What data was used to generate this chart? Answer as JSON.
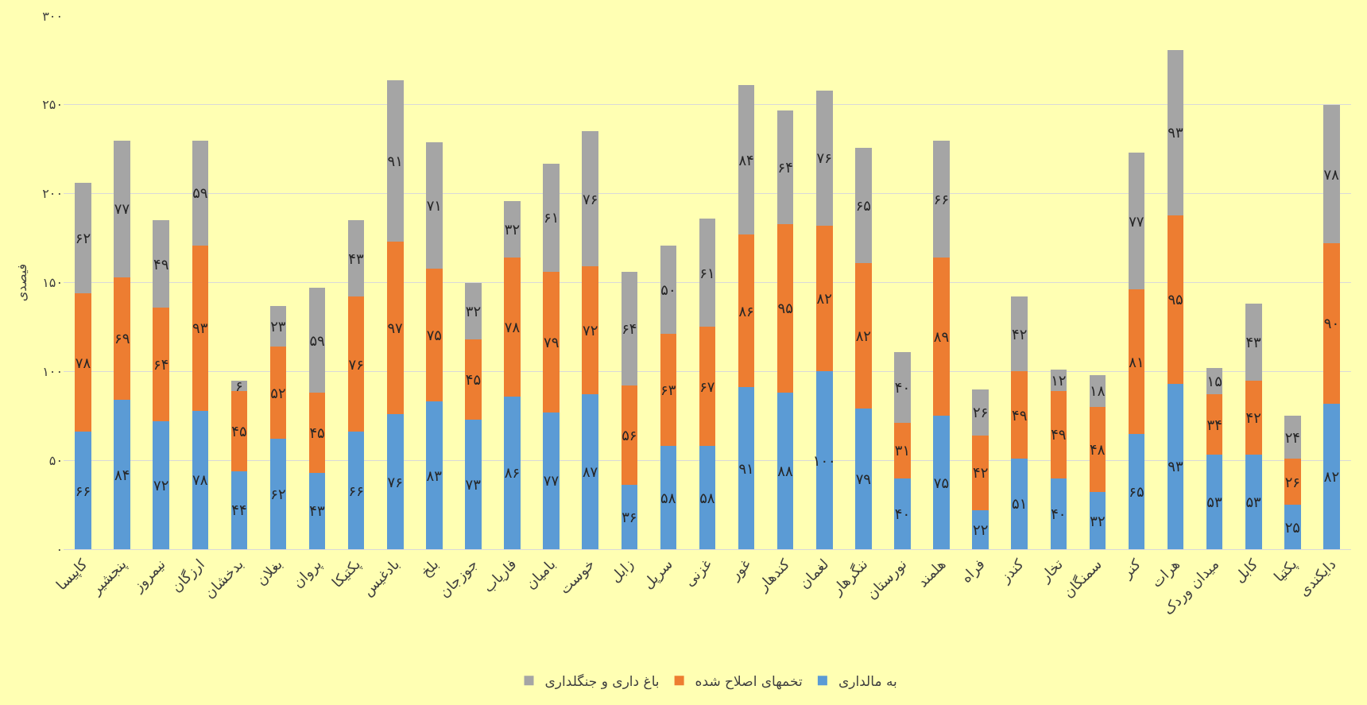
{
  "chart_data": {
    "type": "bar",
    "stacked": true,
    "ylabel": "فیصدی",
    "categories": [
      "کاپیسا",
      "پنجشیر",
      "نیمروز",
      "ارزگان",
      "بدخشان",
      "بغلان",
      "پروان",
      "پکتیکا",
      "بادغیس",
      "بلخ",
      "جوزجان",
      "فاریاب",
      "بامیان",
      "خوست",
      "زابل",
      "سرپل",
      "غزنی",
      "غور",
      "کندهار",
      "لغمان",
      "ننگرهار",
      "نورستان",
      "هلمند",
      "فراه",
      "کندز",
      "تخار",
      "سمنگان",
      "کنر",
      "هرات",
      "میدان وردک",
      "کابل",
      "پکتیا",
      "دایکندی"
    ],
    "series": [
      {
        "name": "به مالداری",
        "color": "#5b9bd5",
        "values": [
          66,
          84,
          72,
          78,
          44,
          62,
          43,
          66,
          76,
          83,
          73,
          86,
          77,
          87,
          36,
          58,
          58,
          91,
          88,
          100,
          79,
          40,
          75,
          22,
          51,
          40,
          32,
          65,
          93,
          53,
          53,
          25,
          82
        ],
        "value_labels": [
          "۶۶",
          "۸۴",
          "۷۲",
          "۷۸",
          "۴۴",
          "۶۲",
          "۴۳",
          "۶۶",
          "۷۶",
          "۸۳",
          "۷۳",
          "۸۶",
          "۷۷",
          "۸۷",
          "۳۶",
          "۵۸",
          "۵۸",
          "۹۱",
          "۸۸",
          "۱۰۰",
          "۷۹",
          "۴۰",
          "۷۵",
          "۲۲",
          "۵۱",
          "۴۰",
          "۳۲",
          "۶۵",
          "۹۳",
          "۵۳",
          "۵۳",
          "۲۵",
          "۸۲"
        ]
      },
      {
        "name": "تخمهای اصلاح شده",
        "color": "#ed7d31",
        "values": [
          78,
          69,
          64,
          93,
          45,
          52,
          45,
          76,
          97,
          75,
          45,
          78,
          79,
          72,
          56,
          63,
          67,
          86,
          95,
          82,
          82,
          31,
          89,
          42,
          49,
          49,
          48,
          81,
          95,
          34,
          42,
          26,
          90
        ],
        "value_labels": [
          "۷۸",
          "۶۹",
          "۶۴",
          "۹۳",
          "۴۵",
          "۵۲",
          "۴۵",
          "۷۶",
          "۹۷",
          "۷۵",
          "۴۵",
          "۷۸",
          "۷۹",
          "۷۲",
          "۵۶",
          "۶۳",
          "۶۷",
          "۸۶",
          "۹۵",
          "۸۲",
          "۸۲",
          "۳۱",
          "۸۹",
          "۴۲",
          "۴۹",
          "۴۹",
          "۴۸",
          "۸۱",
          "۹۵",
          "۳۴",
          "۴۲",
          "۲۶",
          "۹۰"
        ]
      },
      {
        "name": "باغ داری و جنگلداری",
        "color": "#a5a5a5",
        "values": [
          62,
          77,
          49,
          59,
          6,
          23,
          59,
          43,
          91,
          71,
          32,
          32,
          61,
          76,
          64,
          50,
          61,
          84,
          64,
          76,
          65,
          40,
          66,
          26,
          42,
          12,
          18,
          77,
          93,
          15,
          43,
          24,
          78
        ],
        "value_labels": [
          "۶۲",
          "۷۷",
          "۴۹",
          "۵۹",
          "۶",
          "۲۳",
          "۵۹",
          "۴۳",
          "۹۱",
          "۷۱",
          "۳۲",
          "۳۲",
          "۶۱",
          "۷۶",
          "۶۴",
          "۵۰",
          "۶۱",
          "۸۴",
          "۶۴",
          "۷۶",
          "۶۵",
          "۴۰",
          "۶۶",
          "۲۶",
          "۴۲",
          "۱۲",
          "۱۸",
          "۷۷",
          "۹۳",
          "۱۵",
          "۴۳",
          "۲۴",
          "۷۸"
        ]
      }
    ],
    "ylim": [
      0,
      300
    ],
    "yticks": [
      {
        "value": 0,
        "label": "۰"
      },
      {
        "value": 50,
        "label": "۵۰"
      },
      {
        "value": 100,
        "label": "۱۰۰"
      },
      {
        "value": 150,
        "label": "۱۵۰"
      },
      {
        "value": 200,
        "label": "۲۰۰"
      },
      {
        "value": 250,
        "label": "۲۵۰"
      },
      {
        "value": 300,
        "label": "۳۰۰"
      }
    ],
    "grid": "y",
    "legend": "bottom"
  }
}
